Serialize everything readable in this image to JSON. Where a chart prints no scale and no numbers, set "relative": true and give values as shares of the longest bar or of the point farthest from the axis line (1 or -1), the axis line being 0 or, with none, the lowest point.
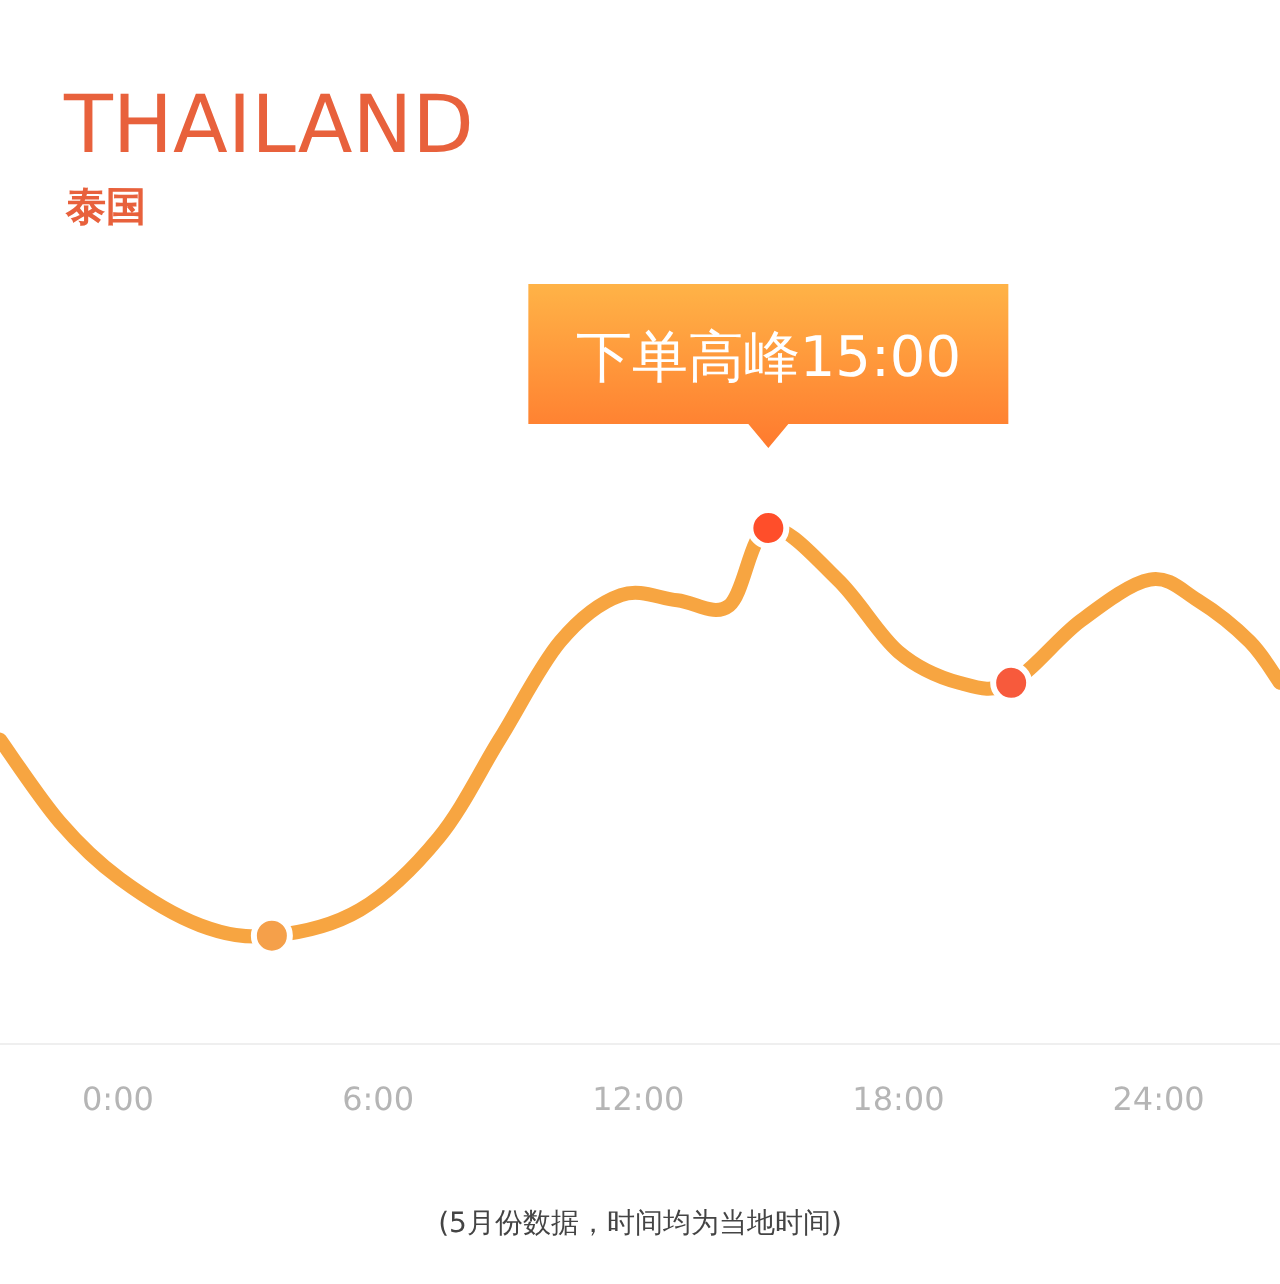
{
  "chart_data": {
    "type": "line",
    "title": "THAILAND",
    "subtitle": "泰国",
    "relative": true,
    "xlim": [
      -2.72,
      26.8
    ],
    "xticks": [
      {
        "value": 0,
        "label": "0:00"
      },
      {
        "value": 6,
        "label": "6:00"
      },
      {
        "value": 12,
        "label": "12:00"
      },
      {
        "value": 18,
        "label": "18:00"
      },
      {
        "value": 24,
        "label": "24:00"
      }
    ],
    "grid": false,
    "series": [
      {
        "color": "#f7a541",
        "line_style": "solid",
        "marker": "none",
        "x": [
          -2.72,
          -1.34,
          0.05,
          1.9,
          3.55,
          5.58,
          7.4,
          8.8,
          10.2,
          11.6,
          12.9,
          14.1,
          15,
          16.6,
          18,
          19.4,
          20.6,
          22.2,
          23.8,
          24.9,
          26.1,
          26.8
        ],
        "values": [
          0.59,
          0.43,
          0.32,
          0.23,
          0.21,
          0.26,
          0.4,
          0.59,
          0.78,
          0.87,
          0.86,
          0.85,
          1,
          0.9,
          0.76,
          0.7,
          0.7,
          0.82,
          0.9,
          0.86,
          0.78,
          0.7
        ]
      },
      {
        "type": "scatter",
        "marker": "circle",
        "x": [
          3.55,
          15,
          20.6
        ],
        "values": [
          0.21,
          1,
          0.7
        ],
        "colors": [
          "#f5a04a",
          "#ff4e2a",
          "#f75a3c"
        ]
      }
    ],
    "annotations": [
      {
        "text": "下单高峰15:00",
        "x": 15,
        "y": 1
      },
      "(5月份数据，时间均为当地时间)"
    ]
  }
}
